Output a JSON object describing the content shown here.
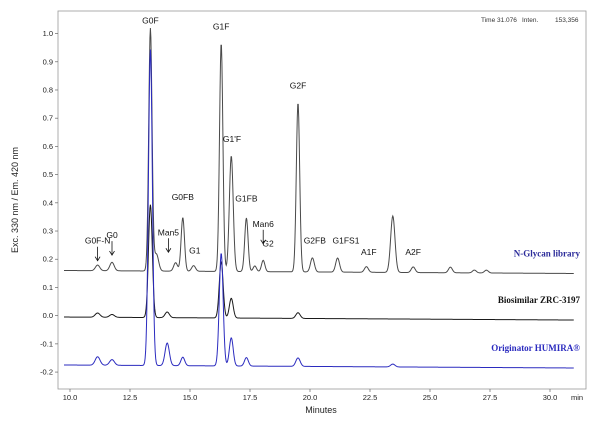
{
  "status": {
    "time_label": "Time",
    "time_value": "31.076",
    "inten_label": "Inten.",
    "inten_value": "153,356"
  },
  "chart_data": {
    "type": "line",
    "xlabel": "Minutes",
    "ylabel": "Exc. 330 nm / Em. 420 nm",
    "xlim": [
      9.5,
      31.5
    ],
    "ylim": [
      -0.26,
      1.08
    ],
    "x_ticks": [
      "10.0",
      "12.5",
      "15.0",
      "17.5",
      "20.0",
      "22.5",
      "25.0",
      "27.5",
      "30.0"
    ],
    "x_tick_values": [
      10,
      12.5,
      15,
      17.5,
      20,
      22.5,
      25,
      27.5,
      30
    ],
    "x_end_label": "min",
    "y_ticks": [
      "-0.2",
      "-0.1",
      "0.0",
      "0.1",
      "0.2",
      "0.3",
      "0.4",
      "0.5",
      "0.6",
      "0.7",
      "0.8",
      "0.9",
      "1.0"
    ],
    "y_tick_values": [
      -0.2,
      -0.1,
      0,
      0.1,
      0.2,
      0.3,
      0.4,
      0.5,
      0.6,
      0.7,
      0.8,
      0.9,
      1.0
    ],
    "series": [
      {
        "name": "N-Glycan library",
        "color": "#4a4a4a",
        "baseline": 0.16,
        "peaks": [
          {
            "rt": 11.15,
            "height": 0.02,
            "width": 0.09
          },
          {
            "rt": 11.75,
            "height": 0.03,
            "width": 0.09
          },
          {
            "rt": 13.35,
            "height": 0.86,
            "width": 0.07
          },
          {
            "rt": 13.6,
            "height": 0.06,
            "width": 0.09
          },
          {
            "rt": 14.4,
            "height": 0.03,
            "width": 0.08
          },
          {
            "rt": 14.7,
            "height": 0.19,
            "width": 0.07
          },
          {
            "rt": 15.15,
            "height": 0.02,
            "width": 0.08
          },
          {
            "rt": 16.3,
            "height": 0.81,
            "width": 0.07
          },
          {
            "rt": 16.72,
            "height": 0.41,
            "width": 0.08
          },
          {
            "rt": 17.35,
            "height": 0.19,
            "width": 0.07
          },
          {
            "rt": 17.7,
            "height": 0.02,
            "width": 0.07
          },
          {
            "rt": 18.05,
            "height": 0.04,
            "width": 0.07
          },
          {
            "rt": 19.5,
            "height": 0.6,
            "width": 0.07
          },
          {
            "rt": 20.1,
            "height": 0.05,
            "width": 0.08
          },
          {
            "rt": 21.15,
            "height": 0.05,
            "width": 0.08
          },
          {
            "rt": 22.35,
            "height": 0.02,
            "width": 0.08
          },
          {
            "rt": 23.45,
            "height": 0.2,
            "width": 0.09
          },
          {
            "rt": 24.3,
            "height": 0.02,
            "width": 0.08
          },
          {
            "rt": 25.85,
            "height": 0.02,
            "width": 0.08
          },
          {
            "rt": 26.85,
            "height": 0.01,
            "width": 0.08
          },
          {
            "rt": 27.35,
            "height": 0.01,
            "width": 0.08
          }
        ]
      },
      {
        "name": "Biosimilar ZRC-3197",
        "color": "#1a1a1a",
        "baseline": -0.005,
        "peaks": [
          {
            "rt": 11.15,
            "height": 0.015,
            "width": 0.1
          },
          {
            "rt": 11.75,
            "height": 0.01,
            "width": 0.1
          },
          {
            "rt": 13.35,
            "height": 0.4,
            "width": 0.08
          },
          {
            "rt": 14.05,
            "height": 0.02,
            "width": 0.09
          },
          {
            "rt": 16.3,
            "height": 0.2,
            "width": 0.08
          },
          {
            "rt": 16.72,
            "height": 0.07,
            "width": 0.08
          },
          {
            "rt": 19.5,
            "height": 0.02,
            "width": 0.09
          }
        ]
      },
      {
        "name": "Originator HUMIRA®",
        "color": "#2b2bbf",
        "baseline": -0.175,
        "peaks": [
          {
            "rt": 11.15,
            "height": 0.03,
            "width": 0.1
          },
          {
            "rt": 11.75,
            "height": 0.02,
            "width": 0.1
          },
          {
            "rt": 13.35,
            "height": 1.12,
            "width": 0.08
          },
          {
            "rt": 14.05,
            "height": 0.08,
            "width": 0.09
          },
          {
            "rt": 14.7,
            "height": 0.03,
            "width": 0.08
          },
          {
            "rt": 16.3,
            "height": 0.4,
            "width": 0.08
          },
          {
            "rt": 16.72,
            "height": 0.1,
            "width": 0.08
          },
          {
            "rt": 17.35,
            "height": 0.03,
            "width": 0.08
          },
          {
            "rt": 19.5,
            "height": 0.03,
            "width": 0.09
          },
          {
            "rt": 23.45,
            "height": 0.01,
            "width": 0.09
          }
        ]
      }
    ],
    "series_labels": [
      {
        "text": "N-Glycan library",
        "color": "#2b2b9a",
        "y": 0.21
      },
      {
        "text": "Biosimilar ZRC-3197",
        "color": "#111111",
        "y": 0.045
      },
      {
        "text": "Originator HUMIRA®",
        "color": "#2b2bbf",
        "y": -0.125
      }
    ],
    "annotations": [
      {
        "text": "G0F-N",
        "x": 11.15,
        "y": 0.255,
        "arrow": true
      },
      {
        "text": "G0",
        "x": 11.75,
        "y": 0.275,
        "arrow": true
      },
      {
        "text": "G0F",
        "x": 13.35,
        "y": 1.035,
        "arrow": false
      },
      {
        "text": "Man5",
        "x": 14.1,
        "y": 0.285,
        "arrow": true
      },
      {
        "text": "G0FB",
        "x": 14.7,
        "y": 0.41,
        "arrow": false
      },
      {
        "text": "G1",
        "x": 15.2,
        "y": 0.22,
        "arrow": false
      },
      {
        "text": "G1F",
        "x": 16.3,
        "y": 1.015,
        "arrow": false
      },
      {
        "text": "G1'F",
        "x": 16.75,
        "y": 0.615,
        "arrow": false
      },
      {
        "text": "G1FB",
        "x": 17.35,
        "y": 0.405,
        "arrow": false
      },
      {
        "text": "Man6",
        "x": 18.05,
        "y": 0.315,
        "arrow": true
      },
      {
        "text": "G2",
        "x": 18.25,
        "y": 0.245,
        "arrow": false
      },
      {
        "text": "G2F",
        "x": 19.5,
        "y": 0.805,
        "arrow": false
      },
      {
        "text": "G2FB",
        "x": 20.2,
        "y": 0.255,
        "arrow": false
      },
      {
        "text": "G1FS1",
        "x": 21.5,
        "y": 0.255,
        "arrow": false
      },
      {
        "text": "A1F",
        "x": 22.45,
        "y": 0.215,
        "arrow": false
      },
      {
        "text": "A2F",
        "x": 24.3,
        "y": 0.215,
        "arrow": false
      }
    ],
    "grid": false,
    "legend": "inline-right"
  }
}
